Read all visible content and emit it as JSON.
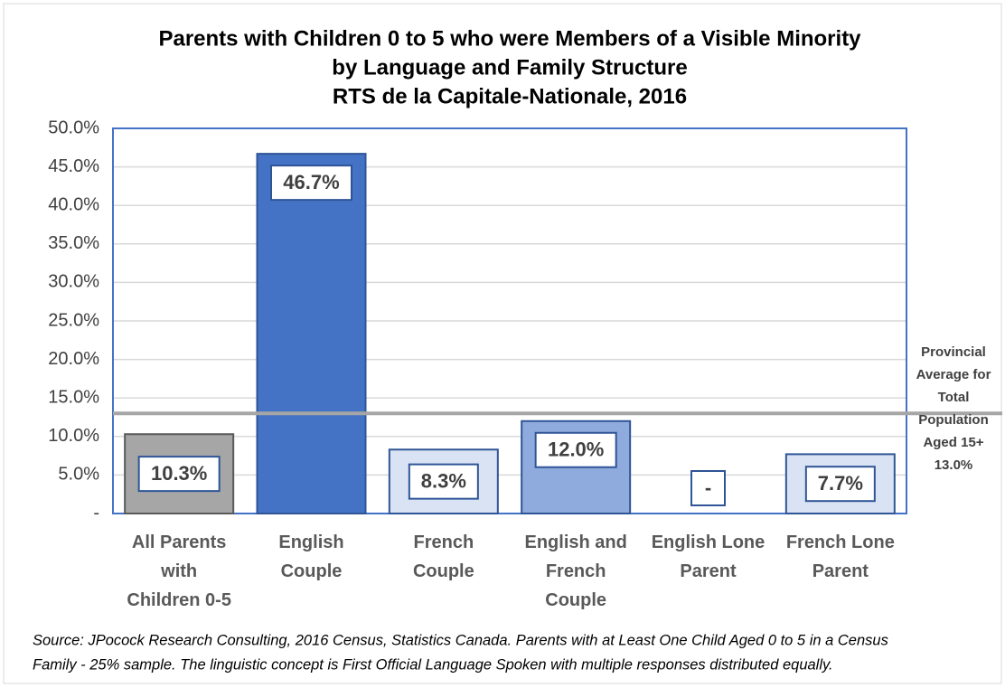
{
  "chart_data": {
    "type": "bar",
    "title": [
      "Parents with Children 0 to 5 who were Members of a Visible Minority",
      "by Language and Family Structure",
      "RTS de la Capitale-Nationale, 2016"
    ],
    "categories": [
      "All Parents\nwith\nChildren 0-5",
      "English\nCouple",
      "French\nCouple",
      "English and\nFrench\nCouple",
      "English Lone\nParent",
      "French Lone\nParent"
    ],
    "values": [
      10.3,
      46.7,
      8.3,
      12.0,
      null,
      7.7
    ],
    "value_labels": [
      "10.3%",
      "46.7%",
      "8.3%",
      "12.0%",
      "-",
      "7.7%"
    ],
    "colors": [
      "#a6a6a6",
      "#4472c4",
      "#dae3f3",
      "#8faadc",
      "#dae3f3",
      "#dae3f3"
    ],
    "ylim": [
      0,
      50
    ],
    "yticks": [
      {
        "value": 0,
        "label": "-"
      },
      {
        "value": 5,
        "label": "5.0%"
      },
      {
        "value": 10,
        "label": "10.0%"
      },
      {
        "value": 15,
        "label": "15.0%"
      },
      {
        "value": 20,
        "label": "20.0%"
      },
      {
        "value": 25,
        "label": "25.0%"
      },
      {
        "value": 30,
        "label": "30.0%"
      },
      {
        "value": 35,
        "label": "35.0%"
      },
      {
        "value": 40,
        "label": "40.0%"
      },
      {
        "value": 45,
        "label": "45.0%"
      },
      {
        "value": 50,
        "label": "50.0%"
      }
    ],
    "grid": true,
    "reference_line": {
      "value": 13.0,
      "label_lines": [
        "Provincial",
        "Average for",
        "Total",
        "Population",
        "Aged 15+"
      ],
      "value_label": "13.0%",
      "color": "#a6a6a6"
    },
    "source": [
      "Source: JPocock Research Consulting, 2016 Census, Statistics Canada. Parents with at Least One Child Aged 0 to 5 in a Census",
      "Family - 25% sample. The linguistic concept is First Official Language Spoken with multiple responses distributed equally."
    ]
  }
}
